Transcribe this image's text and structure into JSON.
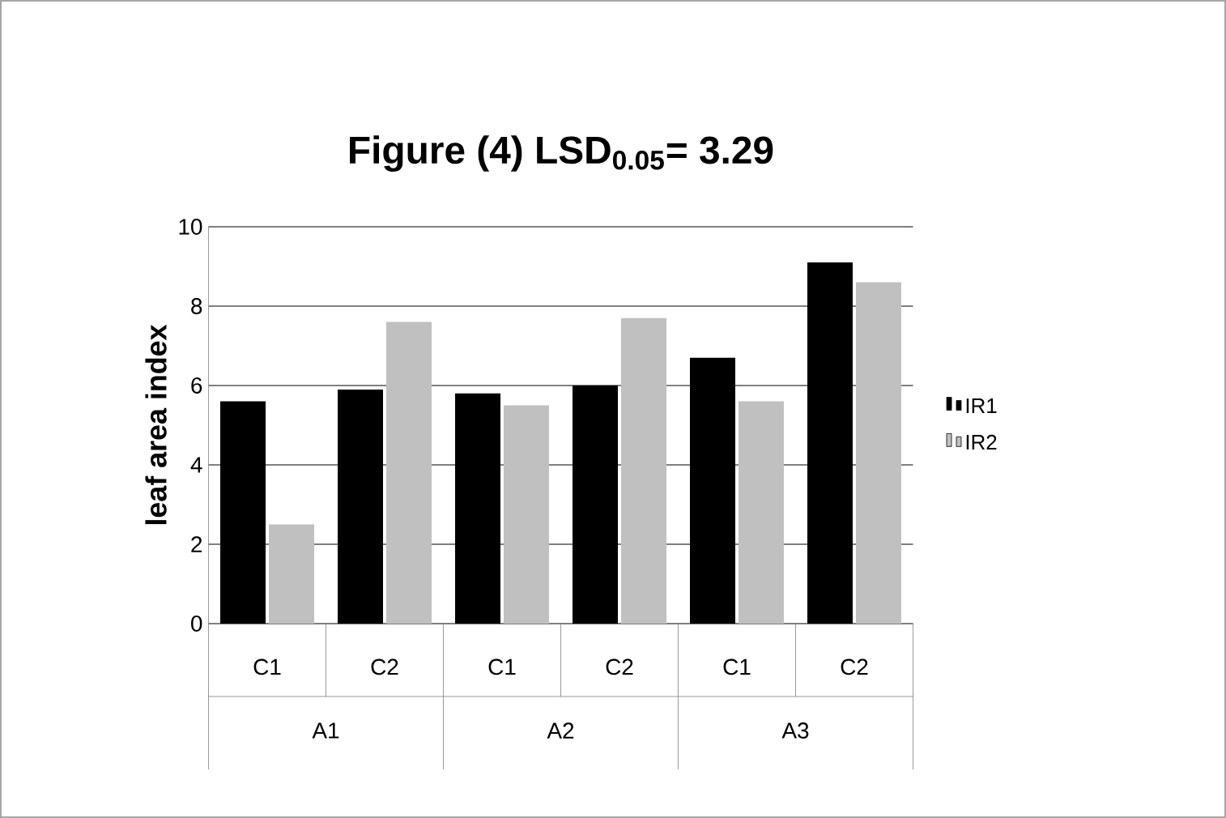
{
  "chart_data": {
    "type": "bar",
    "title": "Figure (4)      LSD$_{0.05}$= 3.29",
    "ylabel": "leaf area index",
    "categories": [
      "C1",
      "C2",
      "C1",
      "C2",
      "C1",
      "C2"
    ],
    "annotations": [
      "A1",
      "A2",
      "A3"
    ],
    "series": [
      {
        "name": "IR1",
        "color": "#000000",
        "values": [
          5.6,
          5.9,
          5.8,
          6.0,
          6.7,
          9.1
        ]
      },
      {
        "name": "IR2",
        "color": "#c0c0c0",
        "values": [
          2.5,
          7.6,
          5.5,
          7.7,
          5.6,
          8.6
        ]
      }
    ],
    "ylim": [
      0,
      10
    ],
    "yticks": [
      0,
      2,
      4,
      6,
      8,
      10
    ],
    "grid": "y",
    "legend": "right"
  }
}
